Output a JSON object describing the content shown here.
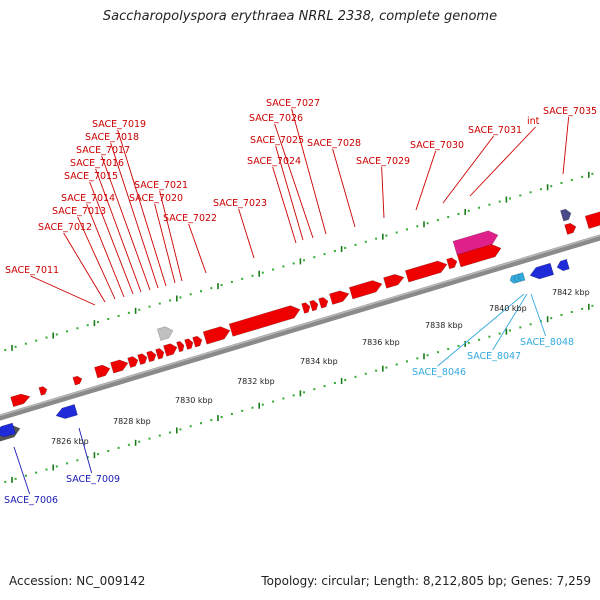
{
  "title": "Saccharopolyspora erythraea NRRL 2338, complete genome",
  "footer": {
    "accession": "Accession: NC_009142",
    "summary": "Topology: circular; Length: 8,212,805 bp; Genes: 7,259"
  },
  "colors": {
    "forward_gene": "#ee0000",
    "reverse_gene": "#1f2bd9",
    "rrna_gene": "#e0208a",
    "pseudo_gene": "#c0c0c0",
    "other_gene": "#4b4b8a",
    "backbone": "#8a8a8a",
    "tick_major": "#1a7a1a",
    "tick_minor": "#33aa33",
    "label_forward": "#cc0000",
    "label_reverse_cyan": "#33aadd",
    "label_reverse_blue": "#1a1ab3"
  },
  "scale_labels": [
    "7826 kbp",
    "7828 kbp",
    "7830 kbp",
    "7832 kbp",
    "7834 kbp",
    "7836 kbp",
    "7838 kbp",
    "7840 kbp",
    "7842 kbp"
  ],
  "forward_labels": [
    "SACE_7011",
    "SACE_7012",
    "SACE_7013",
    "SACE_7014",
    "SACE_7015",
    "SACE_7016",
    "SACE_7017",
    "SACE_7018",
    "SACE_7019",
    "SACE_7020",
    "SACE_7021",
    "SACE_7022",
    "SACE_7023",
    "SACE_7024",
    "SACE_7025",
    "SACE_7026",
    "SACE_7027",
    "SACE_7028",
    "SACE_7029",
    "SACE_7030",
    "SACE_7031",
    "int",
    "SACE_7035"
  ],
  "reverse_labels_cyan": [
    "SACE_8046",
    "SACE_8047",
    "SACE_8048"
  ],
  "reverse_labels_blue": [
    "SACE_7006",
    "SACE_7009"
  ]
}
